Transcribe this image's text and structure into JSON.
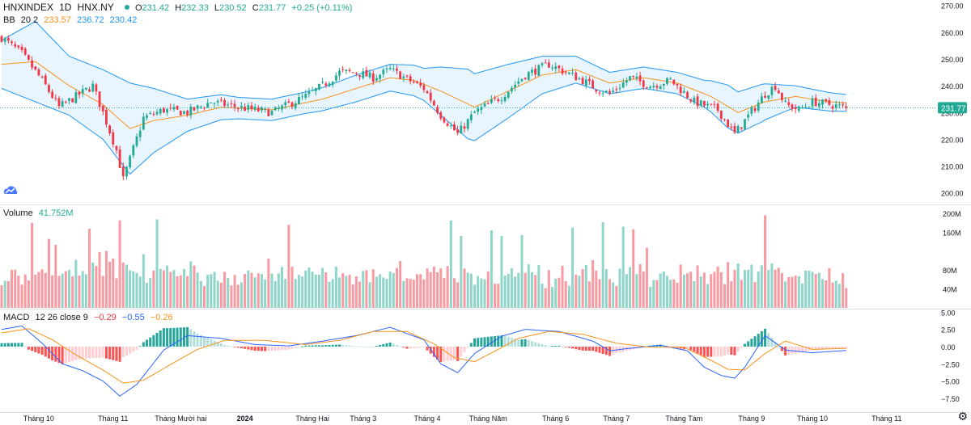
{
  "header": {
    "symbol": "HNXINDEX",
    "interval": "1D",
    "exchange": "HNX.NY",
    "o_key": "O",
    "o_val": "231.42",
    "h_key": "H",
    "h_val": "232.33",
    "l_key": "L",
    "l_val": "230.52",
    "c_key": "C",
    "c_val": "231.77",
    "change": "+0.25 (+0.11%)"
  },
  "bb_legend": {
    "name": "BB",
    "params": "20 2",
    "basis": "233.57",
    "upper": "236.72",
    "lower": "230.42"
  },
  "volume_legend": {
    "name": "Volume",
    "value": "41.752M"
  },
  "macd_legend": {
    "name": "MACD",
    "params": "12 26 close 9",
    "hist": "−0.29",
    "macd": "−0.55",
    "signal": "−0.26"
  },
  "colors": {
    "up": "#22ab94",
    "down": "#f23645",
    "bb_basis": "#f7931a",
    "bb_band": "#2196f3",
    "macd_line": "#2962ff",
    "signal_line": "#f7931a"
  },
  "chart_data": [
    {
      "type": "candlestick",
      "title": "HNXINDEX 1D HNX.NY",
      "ylim": [
        196,
        272
      ],
      "y_ticks": [
        "270.00",
        "260.00",
        "250.00",
        "240.00",
        "230.00",
        "220.00",
        "210.00",
        "200.00"
      ],
      "last_price_label": "231.77",
      "anchors": {
        "x": [
          0,
          6,
          12,
          17,
          22,
          27,
          30,
          34,
          36,
          42,
          48,
          55,
          62,
          70,
          80,
          90,
          95,
          100,
          105,
          110,
          115,
          125,
          130,
          135,
          140,
          148,
          155,
          162,
          167,
          172,
          176,
          180,
          186,
          192,
          198,
          205,
          212,
          217,
          223,
          226,
          229,
          232,
          236,
          240,
          245,
          250
        ],
        "close": [
          258,
          252,
          242,
          232,
          236,
          240,
          230,
          216,
          205,
          228,
          231,
          230,
          234,
          232,
          230,
          236,
          240,
          245,
          245,
          243,
          246,
          239,
          229,
          222,
          230,
          236,
          244,
          248,
          245,
          242,
          239,
          237,
          243,
          240,
          242,
          234,
          231,
          222,
          232,
          237,
          240,
          233,
          231,
          234,
          233,
          231.77
        ]
      },
      "bb_basis_anchors": {
        "x": [
          0,
          10,
          20,
          30,
          38,
          45,
          55,
          65,
          80,
          95,
          105,
          115,
          122,
          130,
          140,
          150,
          160,
          170,
          180,
          190,
          200,
          210,
          218,
          226,
          235,
          245,
          250
        ],
        "y": [
          248,
          249,
          240,
          233,
          224,
          227,
          229,
          232,
          231,
          235,
          239,
          243,
          242,
          238,
          232,
          238,
          244,
          246,
          241,
          243,
          241,
          236,
          230,
          234,
          236,
          234,
          233.57
        ]
      },
      "bb_width_anchors": {
        "x": [
          0,
          10,
          20,
          30,
          38,
          45,
          55,
          70,
          90,
          105,
          115,
          125,
          130,
          138,
          150,
          160,
          170,
          180,
          190,
          200,
          208,
          215,
          225,
          235,
          250
        ],
        "y": [
          9,
          15,
          11,
          13,
          17,
          12,
          6,
          4,
          4,
          5,
          5,
          6,
          9,
          13,
          10,
          7,
          5,
          4,
          4,
          4,
          5,
          8,
          7,
          4,
          3.15
        ]
      }
    },
    {
      "type": "bar",
      "title": "Volume",
      "value": "41.752M",
      "y_ticks": [
        "200M",
        "160M",
        "80M",
        "40M"
      ],
      "ylim": [
        0,
        210
      ]
    },
    {
      "type": "macd",
      "title": "MACD 12 26 close 9",
      "ylim": [
        -9.4,
        5.4
      ],
      "y_ticks": [
        "5.00",
        "2.50",
        "0.00",
        "−2.50",
        "−5.00",
        "−7.50"
      ],
      "macd_anchors": {
        "x": [
          0,
          6,
          12,
          18,
          24,
          30,
          35,
          40,
          48,
          55,
          65,
          75,
          85,
          95,
          105,
          115,
          125,
          130,
          135,
          140,
          148,
          155,
          165,
          175,
          180,
          185,
          195,
          203,
          208,
          213,
          217,
          220,
          226,
          232,
          240,
          250
        ],
        "y": [
          2.5,
          3.0,
          0.5,
          -2.5,
          -3.5,
          -5.0,
          -7.2,
          -5.5,
          -0.5,
          1.6,
          1.2,
          0.3,
          0.1,
          0.8,
          1.6,
          2.8,
          1.0,
          -2.5,
          -3.8,
          -1.0,
          1.5,
          2.5,
          2.2,
          0.8,
          -0.6,
          -0.3,
          0.2,
          -0.6,
          -3.0,
          -4.2,
          -4.6,
          -3.0,
          1.6,
          -0.5,
          -0.9,
          -0.55
        ]
      },
      "signal_anchors": {
        "x": [
          0,
          8,
          15,
          22,
          30,
          36,
          42,
          50,
          58,
          66,
          78,
          90,
          100,
          110,
          120,
          128,
          134,
          140,
          147,
          153,
          162,
          172,
          182,
          192,
          202,
          210,
          215,
          220,
          226,
          232,
          240,
          250
        ],
        "y": [
          2.0,
          2.6,
          1.0,
          -1.2,
          -3.4,
          -5.3,
          -4.9,
          -2.6,
          -0.4,
          0.9,
          0.9,
          0.3,
          0.9,
          2.2,
          2.2,
          0.4,
          -1.6,
          -2.2,
          -0.4,
          1.2,
          2.2,
          1.8,
          0.5,
          -0.1,
          -0.1,
          -2.0,
          -3.3,
          -3.4,
          -1.0,
          0.8,
          -0.4,
          -0.26
        ]
      }
    }
  ],
  "x_axis_labels": [
    {
      "label": "Tháng 10",
      "i": 11,
      "bold": false
    },
    {
      "label": "Tháng 11",
      "i": 33,
      "bold": false
    },
    {
      "label": "Tháng Mười hai",
      "i": 53,
      "bold": false
    },
    {
      "label": "2024",
      "i": 72,
      "bold": true
    },
    {
      "label": "Tháng Hai",
      "i": 92,
      "bold": false
    },
    {
      "label": "Tháng 3",
      "i": 107,
      "bold": false
    },
    {
      "label": "Tháng 4",
      "i": 126,
      "bold": false
    },
    {
      "label": "Tháng Năm",
      "i": 144,
      "bold": false
    },
    {
      "label": "Tháng 6",
      "i": 164,
      "bold": false
    },
    {
      "label": "Tháng 7",
      "i": 182,
      "bold": false
    },
    {
      "label": "Tháng Tám",
      "i": 202,
      "bold": false
    },
    {
      "label": "Tháng 9",
      "i": 222,
      "bold": false
    },
    {
      "label": "Tháng 10",
      "i": 240,
      "bold": false
    },
    {
      "label": "Tháng 11",
      "i": 262,
      "bold": false
    }
  ]
}
